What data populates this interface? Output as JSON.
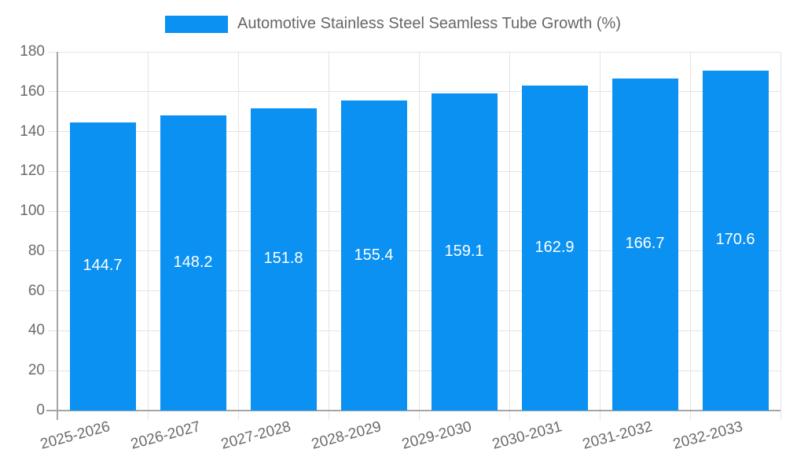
{
  "chart_data": {
    "type": "bar",
    "series_name": "Automotive Stainless Steel Seamless Tube Growth (%)",
    "categories": [
      "2025-2026",
      "2026-2027",
      "2027-2028",
      "2028-2029",
      "2029-2030",
      "2030-2031",
      "2031-2032",
      "2032-2033"
    ],
    "values": [
      144.7,
      148.2,
      151.8,
      155.4,
      159.1,
      162.9,
      166.7,
      170.6
    ],
    "value_labels": [
      "144.7",
      "148.2",
      "151.8",
      "155.4",
      "159.1",
      "162.9",
      "166.7",
      "170.6"
    ],
    "xlabel": "",
    "ylabel": "",
    "ylim": [
      0,
      180
    ],
    "ytick_step": 20,
    "yticks": [
      0,
      20,
      40,
      60,
      80,
      100,
      120,
      140,
      160,
      180
    ],
    "grid": true,
    "legend_position": "top",
    "x_label_rotation_deg": -15,
    "value_label_position": "inside-middle",
    "colors": {
      "bar": "#0a91f2",
      "bar_value_text": "#ffffff",
      "axis_text": "#6b6b6b",
      "legend_text": "#666666",
      "grid_line": "#e3e3e3",
      "axis_line": "#a6a6a6",
      "background": "#ffffff"
    }
  }
}
